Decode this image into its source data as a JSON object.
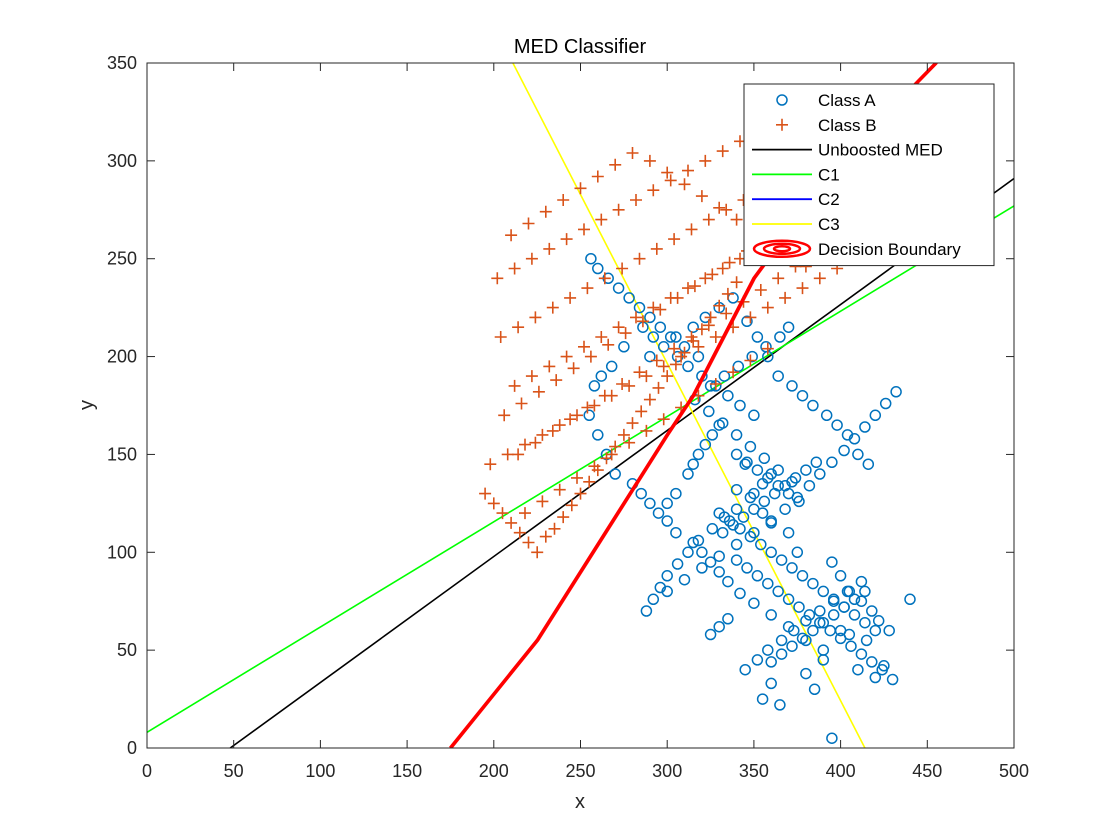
{
  "chart_data": {
    "type": "scatter",
    "title": "MED Classifier",
    "xlabel": "x",
    "ylabel": "y",
    "xlim": [
      0,
      500
    ],
    "ylim": [
      0,
      350
    ],
    "xticks": [
      "0",
      "50",
      "100",
      "150",
      "200",
      "250",
      "300",
      "350",
      "400",
      "450",
      "500"
    ],
    "yticks": [
      "0",
      "50",
      "100",
      "150",
      "200",
      "250",
      "300",
      "350"
    ],
    "grid": false,
    "legend_position": "top-right",
    "series": [
      {
        "name": "Class A",
        "kind": "scatter",
        "marker": "circle",
        "color": "#0072BD",
        "x": [
          395,
          420,
          365,
          355,
          400,
          430,
          410,
          385,
          415,
          390,
          360,
          380,
          425,
          405,
          370,
          340,
          345,
          350,
          355,
          360,
          375,
          395,
          400,
          405,
          412,
          418,
          422,
          428,
          390,
          380,
          370,
          360,
          350,
          342,
          335,
          330,
          325,
          320,
          315,
          305,
          300,
          295,
          290,
          285,
          280,
          270,
          265,
          260,
          255,
          258,
          262,
          268,
          275,
          290,
          305,
          315,
          322,
          330,
          338,
          346,
          352,
          358,
          364,
          372,
          378,
          384,
          392,
          398,
          404,
          410,
          416,
          360,
          355,
          348,
          340,
          333,
          326,
          318,
          312,
          306,
          300,
          296,
          292,
          288,
          300,
          310,
          320,
          330,
          340,
          350,
          360,
          368,
          375,
          382,
          388,
          395,
          402,
          408,
          414,
          420,
          426,
          432,
          440,
          345,
          352,
          358,
          366,
          373,
          380,
          388,
          396,
          404,
          412,
          360,
          366,
          372,
          378,
          384,
          390,
          396,
          402,
          408,
          414,
          350,
          342,
          335,
          328,
          320,
          312,
          306,
          298,
          292,
          286,
          316,
          324,
          332,
          340,
          348,
          356,
          364,
          372,
          332,
          338,
          344,
          350,
          356,
          362,
          368,
          374,
          380,
          386,
          325,
          330,
          335,
          318,
          310,
          302,
          296,
          290,
          284,
          278,
          272,
          266,
          260,
          256,
          340,
          346,
          352,
          358,
          364,
          370,
          376,
          382,
          388,
          394,
          400,
          406,
          412,
          418,
          424,
          330,
          326,
          322,
          318,
          315,
          312,
          305,
          300,
          370,
          365,
          357,
          349,
          341,
          333,
          325,
          340,
          346,
          352,
          358,
          364,
          370,
          376,
          330,
          336,
          342,
          348,
          354,
          360,
          366,
          372,
          378,
          384,
          390,
          396,
          402,
          408,
          414,
          420
        ],
        "y": [
          5,
          36,
          22,
          25,
          60,
          35,
          40,
          30,
          55,
          45,
          33,
          38,
          42,
          58,
          110,
          132,
          145,
          130,
          120,
          115,
          100,
          95,
          88,
          80,
          75,
          70,
          65,
          60,
          50,
          55,
          62,
          68,
          74,
          79,
          85,
          90,
          95,
          100,
          105,
          110,
          116,
          120,
          125,
          130,
          135,
          140,
          150,
          160,
          170,
          185,
          190,
          195,
          205,
          200,
          210,
          215,
          220,
          225,
          230,
          218,
          210,
          200,
          190,
          185,
          180,
          175,
          170,
          165,
          160,
          150,
          145,
          140,
          135,
          128,
          122,
          118,
          112,
          106,
          100,
          94,
          88,
          82,
          76,
          70,
          80,
          86,
          92,
          98,
          104,
          110,
          116,
          122,
          128,
          134,
          140,
          146,
          152,
          158,
          164,
          170,
          176,
          182,
          76,
          40,
          45,
          50,
          55,
          60,
          65,
          70,
          75,
          80,
          85,
          44,
          48,
          52,
          56,
          60,
          64,
          68,
          72,
          76,
          80,
          170,
          175,
          180,
          185,
          190,
          195,
          200,
          205,
          210,
          215,
          178,
          172,
          166,
          160,
          154,
          148,
          142,
          136,
          110,
          114,
          118,
          122,
          126,
          130,
          134,
          138,
          142,
          146,
          58,
          62,
          66,
          200,
          205,
          210,
          215,
          220,
          225,
          230,
          235,
          240,
          245,
          250,
          96,
          92,
          88,
          84,
          80,
          76,
          72,
          68,
          64,
          60,
          56,
          52,
          48,
          44,
          40,
          165,
          160,
          155,
          150,
          145,
          140,
          130,
          125,
          215,
          210,
          205,
          200,
          195,
          190,
          185,
          150,
          146,
          142,
          138,
          134,
          130,
          126,
          120,
          116,
          112,
          108,
          104,
          100,
          96,
          92,
          88,
          84,
          80,
          76,
          72,
          68,
          64,
          60
        ],
        "note": ""
      },
      {
        "name": "Class B",
        "kind": "scatter",
        "marker": "plus",
        "color": "#D95319",
        "x": [
          195,
          200,
          205,
          210,
          215,
          220,
          225,
          230,
          235,
          240,
          245,
          250,
          255,
          260,
          265,
          270,
          275,
          280,
          285,
          290,
          295,
          300,
          305,
          310,
          315,
          320,
          325,
          330,
          335,
          340,
          198,
          208,
          218,
          228,
          238,
          248,
          258,
          268,
          278,
          288,
          298,
          308,
          318,
          328,
          338,
          348,
          358,
          368,
          378,
          388,
          398,
          408,
          212,
          222,
          232,
          242,
          252,
          262,
          272,
          282,
          292,
          302,
          312,
          322,
          332,
          342,
          352,
          362,
          372,
          382,
          392,
          402,
          412,
          204,
          214,
          224,
          234,
          244,
          254,
          264,
          274,
          284,
          294,
          304,
          314,
          324,
          334,
          344,
          354,
          364,
          374,
          384,
          394,
          202,
          212,
          222,
          232,
          242,
          252,
          262,
          272,
          282,
          292,
          302,
          312,
          322,
          332,
          342,
          352,
          362,
          372,
          206,
          216,
          226,
          236,
          246,
          256,
          266,
          276,
          286,
          296,
          306,
          316,
          326,
          336,
          346,
          356,
          366,
          376,
          210,
          220,
          230,
          240,
          250,
          260,
          270,
          280,
          290,
          300,
          310,
          320,
          330,
          340,
          350,
          360,
          370,
          380,
          214,
          224,
          234,
          244,
          254,
          264,
          274,
          284,
          294,
          304,
          314,
          324,
          334,
          344,
          354,
          364,
          374,
          384,
          394,
          404,
          414,
          218,
          228,
          238,
          248,
          258,
          268,
          278,
          288,
          298,
          308,
          318,
          328,
          338,
          348,
          358
        ],
        "y": [
          130,
          125,
          120,
          115,
          110,
          105,
          100,
          108,
          112,
          118,
          124,
          130,
          136,
          142,
          148,
          154,
          160,
          166,
          172,
          178,
          184,
          190,
          196,
          202,
          208,
          214,
          220,
          226,
          232,
          238,
          145,
          150,
          155,
          160,
          165,
          170,
          175,
          180,
          185,
          190,
          195,
          200,
          205,
          210,
          215,
          220,
          225,
          230,
          235,
          240,
          245,
          250,
          185,
          190,
          195,
          200,
          205,
          210,
          215,
          220,
          225,
          230,
          235,
          240,
          245,
          250,
          255,
          260,
          265,
          270,
          275,
          280,
          285,
          210,
          215,
          220,
          225,
          230,
          235,
          240,
          245,
          250,
          255,
          260,
          265,
          270,
          275,
          280,
          285,
          290,
          295,
          300,
          305,
          240,
          245,
          250,
          255,
          260,
          265,
          270,
          275,
          280,
          285,
          290,
          295,
          300,
          305,
          310,
          302,
          296,
          290,
          170,
          176,
          182,
          188,
          194,
          200,
          206,
          212,
          218,
          224,
          230,
          236,
          242,
          248,
          254,
          260,
          266,
          272,
          262,
          268,
          274,
          280,
          286,
          292,
          298,
          304,
          300,
          294,
          288,
          282,
          276,
          270,
          264,
          258,
          252,
          246,
          150,
          156,
          162,
          168,
          174,
          180,
          186,
          192,
          198,
          204,
          210,
          216,
          222,
          228,
          234,
          240,
          246,
          252,
          258,
          264,
          270,
          120,
          126,
          132,
          138,
          144,
          150,
          156,
          162,
          168,
          174,
          180,
          186,
          192,
          198,
          204
        ],
        "note": ""
      },
      {
        "name": "Unboosted MED",
        "kind": "line",
        "color": "#000000",
        "x": [
          48,
          500
        ],
        "y": [
          0,
          291
        ]
      },
      {
        "name": "C1",
        "kind": "line",
        "color": "#00FF00",
        "x": [
          0,
          500
        ],
        "y": [
          8,
          277
        ]
      },
      {
        "name": "C2",
        "kind": "line",
        "color": "#0000FF",
        "x": [],
        "y": []
      },
      {
        "name": "C3",
        "kind": "line",
        "color": "#FFFF00",
        "x": [
          211,
          414
        ],
        "y": [
          350,
          0
        ]
      },
      {
        "name": "Decision Boundary",
        "kind": "contour",
        "color": "#FF0000",
        "x": [
          175,
          225,
          275,
          300,
          315,
          350,
          400,
          455
        ],
        "y": [
          0,
          55,
          125,
          160,
          180,
          240,
          300,
          350
        ]
      }
    ]
  }
}
